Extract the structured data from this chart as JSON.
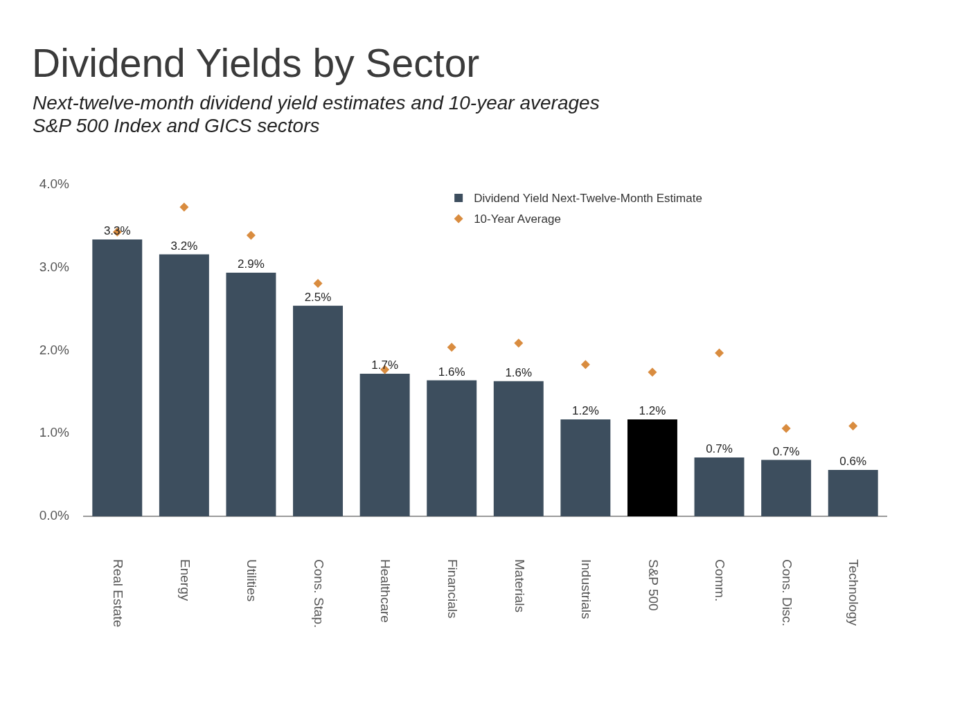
{
  "chart_data": {
    "type": "bar",
    "title": "Dividend Yields by Sector",
    "subtitle": "Next-twelve-month dividend yield estimates and 10-year averages\nS&P 500 Index and GICS sectors",
    "categories": [
      "Real Estate",
      "Energy",
      "Utilities",
      "Cons. Stap.",
      "Healthcare",
      "Financials",
      "Materials",
      "Industrials",
      "S&P 500",
      "Comm.",
      "Cons. Disc.",
      "Technology"
    ],
    "series": [
      {
        "name": "Dividend Yield Next-Twelve-Month Estimate",
        "color": "#3d4e5e",
        "colors": [
          "#3d4e5e",
          "#3d4e5e",
          "#3d4e5e",
          "#3d4e5e",
          "#3d4e5e",
          "#3d4e5e",
          "#3d4e5e",
          "#3d4e5e",
          "#000000",
          "#3d4e5e",
          "#3d4e5e",
          "#3d4e5e"
        ],
        "values": [
          3.34,
          3.16,
          2.94,
          2.54,
          1.72,
          1.64,
          1.63,
          1.17,
          1.17,
          0.71,
          0.68,
          0.56
        ],
        "value_labels": [
          "3.3%",
          "3.2%",
          "2.9%",
          "2.5%",
          "1.7%",
          "1.6%",
          "1.6%",
          "1.2%",
          "1.2%",
          "0.7%",
          "0.7%",
          "0.6%"
        ]
      },
      {
        "name": "10-Year Average",
        "type": "scatter",
        "color": "#d98c3f",
        "x": [
          "Real Estate",
          "Energy",
          "Utilities",
          "Cons. Stap.",
          "Healthcare",
          "Financials",
          "Materials",
          "Industrials",
          "S&P 500",
          "Comm.",
          "Cons. Disc.",
          "Technology"
        ],
        "values": [
          3.43,
          3.73,
          3.39,
          2.81,
          1.77,
          2.04,
          2.09,
          1.83,
          1.74,
          1.97,
          1.06,
          1.09
        ]
      }
    ],
    "ylim": [
      0,
      4
    ],
    "yticks": [
      {
        "value": 0,
        "label": "0.0%"
      },
      {
        "value": 1,
        "label": "1.0%"
      },
      {
        "value": 2,
        "label": "2.0%"
      },
      {
        "value": 3,
        "label": "3.0%"
      },
      {
        "value": 4,
        "label": "4.0%"
      }
    ],
    "legend": "top",
    "marker": "diamond"
  }
}
